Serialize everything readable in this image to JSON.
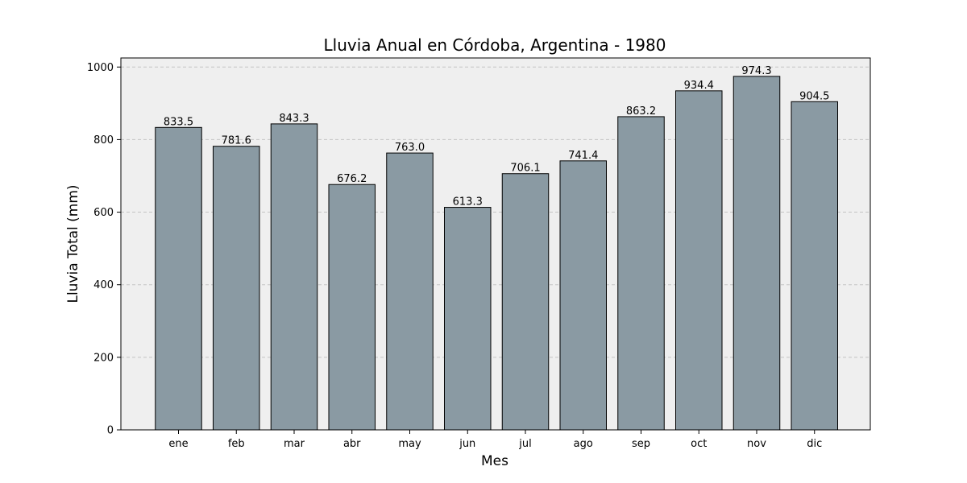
{
  "chart_data": {
    "type": "bar",
    "title": "Lluvia Anual en Córdoba, Argentina - 1980",
    "xlabel": "Mes",
    "ylabel": "Lluvia Total (mm)",
    "categories": [
      "ene",
      "feb",
      "mar",
      "abr",
      "may",
      "jun",
      "jul",
      "ago",
      "sep",
      "oct",
      "nov",
      "dic"
    ],
    "values": [
      833.5,
      781.6,
      843.3,
      676.2,
      763.0,
      613.3,
      706.1,
      741.4,
      863.2,
      934.4,
      974.3,
      904.5
    ],
    "data_labels": [
      "833.5",
      "781.6",
      "843.3",
      "676.2",
      "763.0",
      "613.3",
      "706.1",
      "741.4",
      "863.2",
      "934.4",
      "974.3",
      "904.5"
    ],
    "ylim": [
      0,
      1025
    ],
    "yticks": [
      0,
      200,
      400,
      600,
      800,
      1000
    ],
    "ytick_labels": [
      "0",
      "200",
      "400",
      "600",
      "800",
      "1000"
    ],
    "grid": "horizontal dashed",
    "colors": {
      "bar_fill": "#8a9aa3",
      "bar_edge": "#000000",
      "plot_background": "#efefef",
      "grid": "#c4c4c4"
    }
  }
}
